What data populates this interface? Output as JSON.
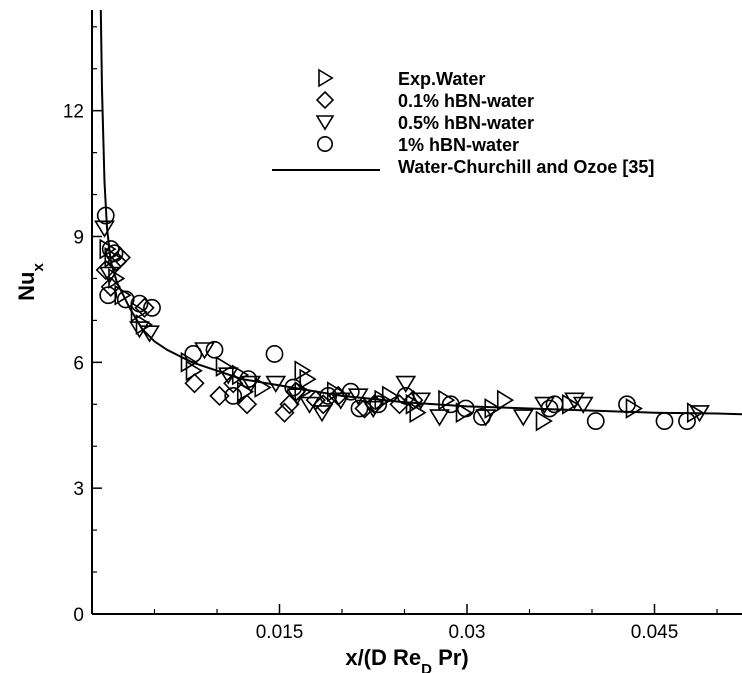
{
  "chart_data": {
    "type": "scatter",
    "xlabel": {
      "main": "x/(D Re",
      "sub": "D",
      "tail": " Pr)"
    },
    "ylabel": {
      "main": "Nu",
      "sub": "x"
    },
    "xlim": [
      0,
      0.052
    ],
    "ylim": [
      0,
      14.4
    ],
    "x_ticks": [
      0.015,
      0.03,
      0.045
    ],
    "x_tick_labels": [
      "0.015",
      "0.03",
      "0.045"
    ],
    "y_ticks": [
      0,
      3,
      6,
      9,
      12
    ],
    "y_tick_labels": [
      "0",
      "3",
      "6",
      "9",
      "12"
    ],
    "grid": false,
    "legend_position": "top-right",
    "series": [
      {
        "name": "Exp.Water",
        "marker": "triangle-right",
        "x": [
          0.0012,
          0.0016,
          0.0019,
          0.0024,
          0.0037,
          0.0041,
          0.0077,
          0.0081,
          0.0105,
          0.0118,
          0.0122,
          0.0136,
          0.0168,
          0.0168,
          0.0172,
          0.0194,
          0.0232,
          0.0238,
          0.0257,
          0.026,
          0.0283,
          0.0297,
          0.032,
          0.033,
          0.0361,
          0.0382,
          0.0433,
          0.0482
        ],
        "y": [
          8.7,
          8.5,
          8.0,
          7.6,
          7.2,
          6.9,
          6.0,
          5.8,
          5.9,
          5.7,
          5.3,
          5.4,
          5.3,
          5.8,
          5.6,
          5.3,
          5.1,
          5.2,
          5.0,
          4.8,
          5.1,
          4.8,
          4.9,
          5.1,
          4.6,
          5.0,
          4.9,
          4.8
        ]
      },
      {
        "name": "0.1% hBN-water",
        "marker": "diamond",
        "x": [
          0.0011,
          0.0015,
          0.002,
          0.0023,
          0.0042,
          0.0082,
          0.0102,
          0.0113,
          0.0124,
          0.0154,
          0.0158,
          0.0163,
          0.0179,
          0.0185,
          0.0197,
          0.0218,
          0.0226,
          0.0246,
          0.0257
        ],
        "y": [
          8.2,
          7.8,
          8.4,
          8.5,
          7.3,
          5.5,
          5.2,
          5.5,
          5.0,
          4.8,
          5.0,
          5.3,
          5.1,
          5.0,
          5.2,
          4.9,
          5.0,
          5.0,
          5.1
        ]
      },
      {
        "name": "0.5% hBN-water",
        "marker": "triangle-down",
        "x": [
          0.001,
          0.0014,
          0.0038,
          0.0046,
          0.009,
          0.0109,
          0.0127,
          0.0147,
          0.0164,
          0.0174,
          0.0184,
          0.0199,
          0.0213,
          0.0225,
          0.0251,
          0.0263,
          0.0278,
          0.0315,
          0.0345,
          0.0362,
          0.0386,
          0.0393,
          0.0486
        ],
        "y": [
          9.2,
          8.1,
          6.8,
          6.7,
          6.3,
          5.7,
          5.5,
          5.5,
          5.2,
          5.0,
          4.8,
          5.1,
          5.2,
          4.9,
          5.5,
          5.1,
          4.7,
          4.7,
          4.7,
          5.0,
          5.1,
          5.0,
          4.8
        ]
      },
      {
        "name": "1% hBN-water",
        "marker": "circle",
        "x": [
          0.0011,
          0.0015,
          0.0018,
          0.0013,
          0.0027,
          0.0038,
          0.0048,
          0.0081,
          0.0098,
          0.0113,
          0.0125,
          0.0146,
          0.0161,
          0.0189,
          0.0207,
          0.0214,
          0.0229,
          0.0251,
          0.0287,
          0.0299,
          0.0312,
          0.0366,
          0.037,
          0.0403,
          0.0428,
          0.0458,
          0.0476
        ],
        "y": [
          9.5,
          8.7,
          8.6,
          7.6,
          7.5,
          7.4,
          7.3,
          6.2,
          6.3,
          5.2,
          5.6,
          6.2,
          5.4,
          5.2,
          5.3,
          4.9,
          5.0,
          5.2,
          5.0,
          4.9,
          4.7,
          4.9,
          5.0,
          4.6,
          5.0,
          4.6,
          4.6
        ]
      }
    ],
    "curve": {
      "name": "Water-Churchill and Ozoe [35]",
      "type": "line",
      "x": [
        0.0007,
        0.0008,
        0.001,
        0.0012,
        0.0015,
        0.002,
        0.0025,
        0.003,
        0.004,
        0.005,
        0.006,
        0.008,
        0.01,
        0.012,
        0.015,
        0.018,
        0.02,
        0.025,
        0.03,
        0.035,
        0.04,
        0.045,
        0.05,
        0.052
      ],
      "y": [
        14.4,
        12.5,
        10.3,
        9.2,
        8.4,
        7.9,
        7.6,
        7.3,
        6.8,
        6.5,
        6.3,
        6.0,
        5.8,
        5.6,
        5.45,
        5.3,
        5.2,
        5.05,
        4.95,
        4.9,
        4.85,
        4.8,
        4.78,
        4.76
      ]
    }
  }
}
